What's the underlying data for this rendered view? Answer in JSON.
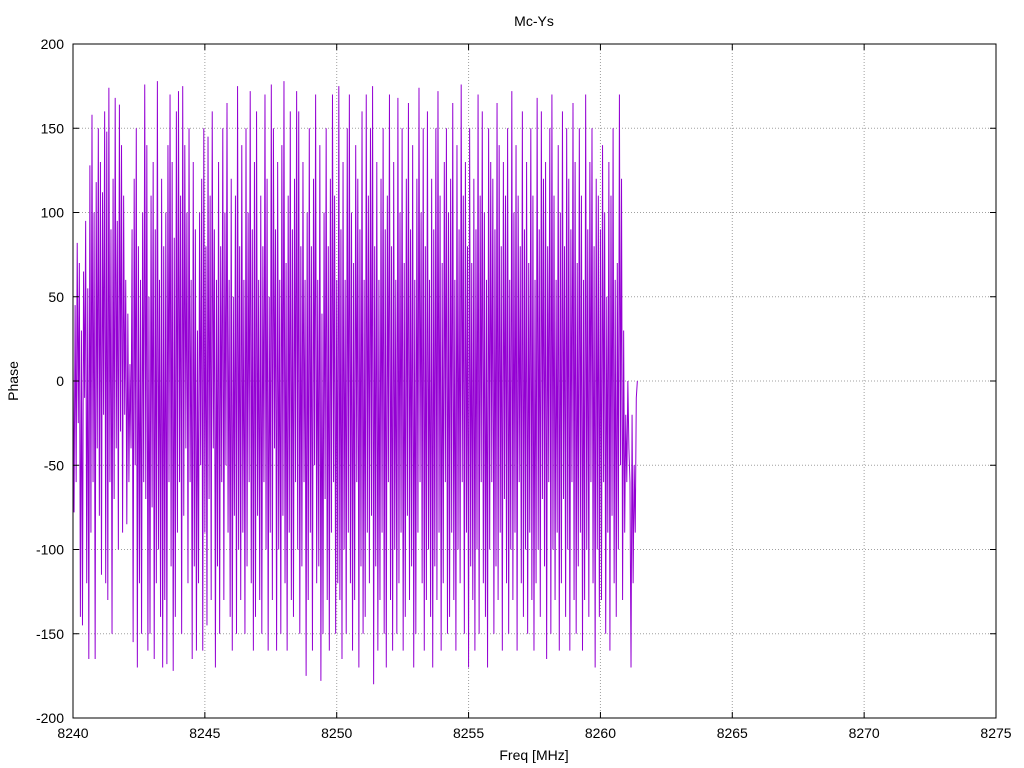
{
  "chart_data": {
    "type": "line",
    "title": "Mc-Ys",
    "xlabel": "Freq [MHz]",
    "ylabel": "Phase",
    "xlim": [
      8240,
      8275
    ],
    "ylim": [
      -200,
      200
    ],
    "xticks": [
      "8240",
      "8245",
      "8250",
      "8255",
      "8260",
      "8265",
      "8270",
      "8275"
    ],
    "yticks": [
      "200",
      "150",
      "100",
      "50",
      "0",
      "-50",
      "-100",
      "-150",
      "-200"
    ],
    "grid": true,
    "legend": "none",
    "series": [
      {
        "color": "#9400d3",
        "x_start": 8240.0,
        "x_step": 0.04,
        "y": [
          10,
          -78,
          45,
          -60,
          82,
          -25,
          70,
          -140,
          30,
          -145,
          65,
          -10,
          95,
          -120,
          55,
          -165,
          128,
          -90,
          158,
          -60,
          100,
          -165,
          118,
          -40,
          150,
          -80,
          130,
          -115,
          112,
          -20,
          160,
          -120,
          148,
          -130,
          174,
          -60,
          90,
          -150,
          120,
          -70,
          168,
          -40,
          95,
          -100,
          164,
          -30,
          140,
          -90,
          110,
          -20,
          60,
          -85,
          40,
          -60,
          10,
          -40,
          90,
          -155,
          120,
          -50,
          150,
          -170,
          80,
          -120,
          60,
          -150,
          100,
          -60,
          176,
          -70,
          140,
          -160,
          50,
          -150,
          110,
          -75,
          130,
          -165,
          90,
          -120,
          178,
          -100,
          60,
          -140,
          120,
          -170,
          80,
          -130,
          100,
          -168,
          140,
          -60,
          170,
          -110,
          130,
          -172,
          85,
          -140,
          160,
          -90,
          172,
          -60,
          110,
          -150,
          175,
          -80,
          140,
          -40,
          100,
          -120,
          150,
          -60,
          60,
          -165,
          130,
          -110,
          90,
          -160,
          30,
          -120,
          100,
          -50,
          120,
          -160,
          150,
          -90,
          80,
          -145,
          145,
          -70,
          110,
          -130,
          160,
          -40,
          90,
          -170,
          60,
          -110,
          130,
          -150,
          80,
          -60,
          150,
          -130,
          100,
          -50,
          165,
          -90,
          60,
          -140,
          120,
          -160,
          50,
          -80,
          110,
          -150,
          175,
          -100,
          80,
          -130,
          140,
          -90,
          60,
          -150,
          150,
          -110,
          100,
          -60,
          172,
          -120,
          90,
          -160,
          130,
          -140,
          160,
          -80,
          60,
          -130,
          110,
          -150,
          80,
          -60,
          170,
          -100,
          120,
          -160,
          50,
          -90,
          176,
          -130,
          150,
          -40,
          90,
          -160,
          130,
          -100,
          60,
          -150,
          140,
          -80,
          178,
          -120,
          70,
          -160,
          110,
          -90,
          160,
          -130,
          90,
          -140,
          120,
          -60,
          172,
          -100,
          160,
          -150,
          80,
          -110,
          130,
          -60,
          60,
          -175,
          100,
          -130,
          150,
          -90,
          80,
          -160,
          120,
          -50,
          170,
          -120,
          60,
          -110,
          140,
          -178,
          40,
          -150,
          100,
          -70,
          150,
          -130,
          80,
          -160,
          120,
          -90,
          170,
          -60,
          110,
          -150,
          60,
          -120,
          175,
          -130,
          90,
          -165,
          130,
          -100,
          60,
          -150,
          150,
          -90,
          170,
          -120,
          100,
          -160,
          70,
          -130,
          140,
          -60,
          120,
          -170,
          90,
          -110,
          160,
          -150,
          60,
          -140,
          170,
          -90,
          110,
          -120,
          150,
          -80,
          175,
          -180,
          80,
          -110,
          130,
          -160,
          60,
          -130,
          120,
          -90,
          150,
          -150,
          90,
          -170,
          110,
          -60,
          170,
          -130,
          80,
          -160,
          130,
          -100,
          60,
          -150,
          168,
          -120,
          100,
          -90,
          150,
          -160,
          70,
          -140,
          120,
          -80,
          165,
          -130,
          90,
          -110,
          140,
          -170,
          60,
          -150,
          120,
          -90,
          174,
          -60,
          100,
          -120,
          150,
          -160,
          80,
          -130,
          160,
          -100,
          60,
          -140,
          120,
          -170,
          90,
          -110,
          150,
          -130,
          172,
          -90,
          110,
          -160,
          70,
          -120,
          130,
          -60,
          150,
          -150,
          100,
          -140,
          120,
          -90,
          165,
          -130,
          60,
          -160,
          140,
          -100,
          90,
          -120,
          176,
          -60,
          110,
          -150,
          130,
          -90,
          80,
          -170,
          150,
          -110,
          70,
          -130,
          120,
          -160,
          90,
          -100,
          170,
          -150,
          110,
          -60,
          160,
          -120,
          100,
          -140,
          60,
          -170,
          150,
          -100,
          130,
          -60,
          120,
          -150,
          90,
          -110,
          165,
          -130,
          140,
          -90,
          80,
          -160,
          130,
          -70,
          110,
          -120,
          150,
          -150,
          60,
          -100,
          172,
          -130,
          100,
          -90,
          140,
          -160,
          110,
          -60,
          80,
          -120,
          160,
          -140,
          90,
          -100,
          130,
          -150,
          70,
          -90,
          150,
          -130,
          110,
          -160,
          60,
          -120,
          168,
          -100,
          90,
          -140,
          160,
          -70,
          120,
          -110,
          130,
          -165,
          80,
          -60,
          150,
          -150,
          170,
          -100,
          110,
          -130,
          60,
          -90,
          140,
          -160,
          100,
          -120,
          160,
          -70,
          80,
          -140,
          150,
          -100,
          120,
          -160,
          90,
          -60,
          165,
          -130,
          130,
          -150,
          70,
          -110,
          150,
          -90,
          110,
          -160,
          60,
          -130,
          170,
          -100,
          90,
          -140,
          130,
          -60,
          150,
          -120,
          80,
          -170,
          120,
          -100,
          110,
          -140,
          90,
          -130,
          140,
          -60,
          100,
          -150,
          50,
          -90,
          130,
          -160,
          110,
          -80,
          150,
          -120,
          60,
          -140,
          70,
          -100,
          170,
          -50,
          120,
          -130,
          30,
          -90,
          -20,
          -60,
          0,
          -40,
          -60,
          -170,
          -20,
          -120,
          -50,
          -90,
          -10,
          0
        ]
      }
    ]
  }
}
